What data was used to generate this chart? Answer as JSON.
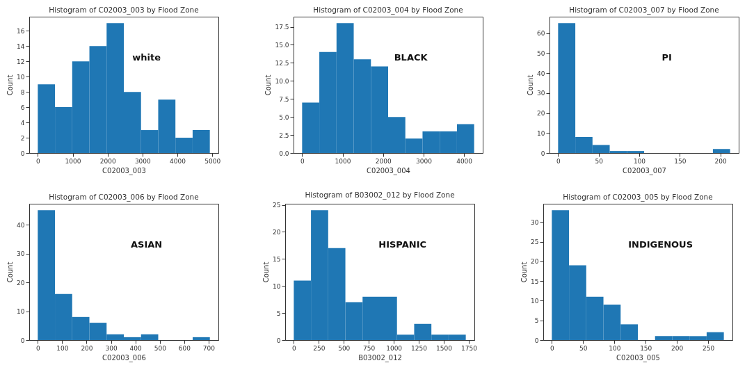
{
  "chart_data": [
    {
      "type": "histogram",
      "title": "Histogram of C02003_003 by Flood Zone",
      "xlabel": "C02003_003",
      "ylabel": "Count",
      "annotations": [
        "white"
      ],
      "color": "#1f77b4",
      "bins": [
        0,
        493,
        986,
        1479,
        1972,
        2465,
        2958,
        3451,
        3944,
        4437,
        4930
      ],
      "values": [
        9,
        6,
        12,
        14,
        17,
        8,
        3,
        7,
        2,
        3
      ],
      "xlim": [
        -246,
        5176
      ],
      "xticks": [
        0,
        1000,
        2000,
        3000,
        4000,
        5000
      ],
      "ylim": [
        0,
        17.85
      ],
      "yticks": [
        0,
        2,
        4,
        6,
        8,
        10,
        12,
        14,
        16
      ]
    },
    {
      "type": "histogram",
      "title": "Histogram of C02003_004 by Flood Zone",
      "xlabel": "C02003_004",
      "ylabel": "Count",
      "annotations": [
        "BLACK"
      ],
      "color": "#1f77b4",
      "bins": [
        0,
        425,
        850,
        1275,
        1700,
        2125,
        2550,
        2975,
        3400,
        3825,
        4250
      ],
      "values": [
        7,
        14,
        18,
        13,
        12,
        5,
        2,
        3,
        3,
        4
      ],
      "xlim": [
        -212,
        4462
      ],
      "xticks": [
        0,
        1000,
        2000,
        3000,
        4000
      ],
      "ylim": [
        0,
        18.9
      ],
      "yticks": [
        {
          "value": 0,
          "label": "0.0"
        },
        {
          "value": 2.5,
          "label": "2.5"
        },
        {
          "value": 5,
          "label": "5.0"
        },
        {
          "value": 7.5,
          "label": "7.5"
        },
        {
          "value": 10,
          "label": "10.0"
        },
        {
          "value": 12.5,
          "label": "12.5"
        },
        {
          "value": 15,
          "label": "15.0"
        },
        {
          "value": 17.5,
          "label": "17.5"
        }
      ]
    },
    {
      "type": "histogram",
      "title": "Histogram of C02003_007 by Flood Zone",
      "xlabel": "C02003_007",
      "ylabel": "Count",
      "annotations": [
        "PI"
      ],
      "color": "#1f77b4",
      "bins": [
        0,
        21.2,
        42.4,
        63.6,
        84.8,
        106,
        127.2,
        148.4,
        169.6,
        190.8,
        212
      ],
      "values": [
        65,
        8,
        4,
        1,
        1,
        0,
        0,
        0,
        0,
        2
      ],
      "xlim": [
        -10.6,
        222.6
      ],
      "xticks": [
        0,
        50,
        100,
        150,
        200
      ],
      "ylim": [
        0,
        68.25
      ],
      "yticks": [
        0,
        10,
        20,
        30,
        40,
        50,
        60
      ]
    },
    {
      "type": "histogram",
      "title": "Histogram of C02003_006 by Flood Zone",
      "xlabel": "C02003_006",
      "ylabel": "Count",
      "annotations": [
        "ASIAN"
      ],
      "color": "#1f77b4",
      "bins": [
        0,
        70.5,
        141,
        211.5,
        282,
        352.5,
        423,
        493.5,
        564,
        634.5,
        705
      ],
      "values": [
        45,
        16,
        8,
        6,
        2,
        1,
        2,
        0,
        0,
        1
      ],
      "xlim": [
        -35,
        740
      ],
      "xticks": [
        0,
        100,
        200,
        300,
        400,
        500,
        600,
        700
      ],
      "ylim": [
        0,
        47.25
      ],
      "yticks": [
        0,
        10,
        20,
        30,
        40
      ]
    },
    {
      "type": "histogram",
      "title": "Histogram of B03002_012 by Flood Zone",
      "xlabel": "B03002_012",
      "ylabel": "Count",
      "annotations": [
        "HISPANIC"
      ],
      "color": "#1f77b4",
      "bins": [
        0,
        172,
        344,
        516,
        688,
        860,
        1032,
        1204,
        1376,
        1548,
        1720
      ],
      "values": [
        11,
        24,
        17,
        7,
        8,
        8,
        1,
        3,
        1,
        1
      ],
      "xlim": [
        -86,
        1806
      ],
      "xticks": [
        0,
        250,
        500,
        750,
        1000,
        1250,
        1500,
        1750
      ],
      "ylim": [
        0,
        25.2
      ],
      "yticks": [
        0,
        5,
        10,
        15,
        20,
        25
      ]
    },
    {
      "type": "histogram",
      "title": "Histogram of C02003_005 by Flood Zone",
      "xlabel": "C02003_005",
      "ylabel": "Count",
      "annotations": [
        "INDIGENOUS"
      ],
      "color": "#1f77b4",
      "bins": [
        0,
        27.5,
        55,
        82.5,
        110,
        137.5,
        165,
        192.5,
        220,
        247.5,
        275
      ],
      "values": [
        33,
        19,
        11,
        9,
        4,
        0,
        1,
        1,
        1,
        2
      ],
      "xlim": [
        -13.75,
        288.75
      ],
      "xticks": [
        0,
        50,
        100,
        150,
        200,
        250
      ],
      "ylim": [
        0,
        34.65
      ],
      "yticks": [
        0,
        5,
        10,
        15,
        20,
        25,
        30
      ]
    }
  ]
}
